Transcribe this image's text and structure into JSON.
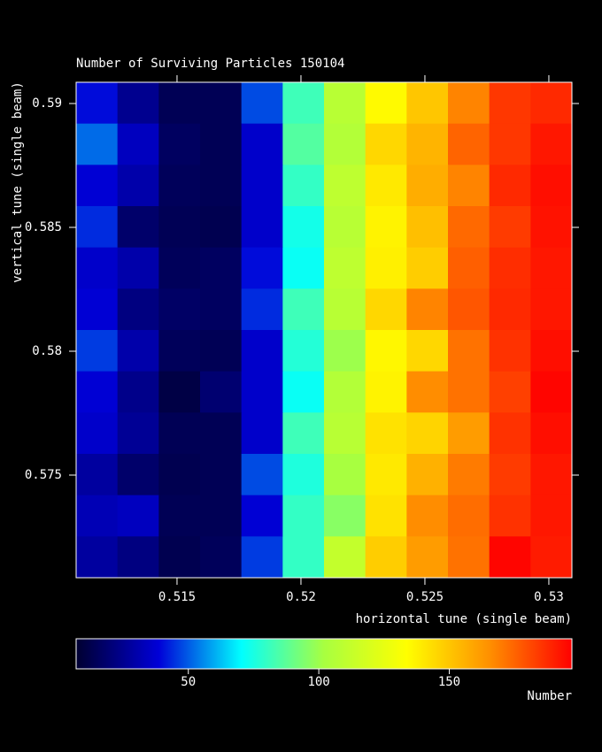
{
  "chart_data": {
    "type": "heatmap",
    "title": "Number of Surviving Particles    150104",
    "x_label": "horizontal tune (single beam)",
    "y_label": "vertical tune (single beam)",
    "colorbar_label": "Number",
    "xlim": [
      0.51093,
      0.53093
    ],
    "xticks": [
      0.515,
      0.52,
      0.525,
      0.53
    ],
    "ylim": [
      0.570857,
      0.590857
    ],
    "yticks": [
      0.575,
      0.58,
      0.585,
      0.59
    ],
    "clim": [
      7,
      197
    ],
    "cticks": [
      50,
      100,
      150
    ],
    "colormap": [
      "#000030",
      "#0000d8",
      "#00ffff",
      "#a8ff40",
      "#ffff00",
      "#ff9000",
      "#ff0000"
    ],
    "z": [
      [
        40,
        25,
        14,
        14,
        48,
        82,
        108,
        135,
        150,
        168,
        185,
        188
      ],
      [
        52,
        34,
        16,
        14,
        36,
        86,
        106,
        145,
        155,
        175,
        185,
        192
      ],
      [
        38,
        30,
        15,
        14,
        36,
        80,
        110,
        140,
        157,
        168,
        188,
        194
      ],
      [
        44,
        18,
        14,
        13,
        36,
        74,
        108,
        137,
        152,
        174,
        184,
        193
      ],
      [
        36,
        30,
        15,
        16,
        40,
        72,
        110,
        138,
        148,
        176,
        187,
        192
      ],
      [
        38,
        22,
        17,
        16,
        44,
        82,
        108,
        145,
        168,
        178,
        188,
        192
      ],
      [
        46,
        30,
        15,
        14,
        36,
        77,
        100,
        136,
        145,
        172,
        186,
        194
      ],
      [
        38,
        24,
        11,
        19,
        36,
        72,
        106,
        137,
        166,
        172,
        183,
        196
      ],
      [
        36,
        26,
        14,
        14,
        36,
        82,
        108,
        142,
        146,
        162,
        186,
        194
      ],
      [
        28,
        18,
        13,
        14,
        48,
        76,
        102,
        140,
        156,
        170,
        184,
        192
      ],
      [
        32,
        34,
        14,
        14,
        38,
        80,
        96,
        142,
        166,
        173,
        186,
        192
      ],
      [
        28,
        22,
        13,
        15,
        46,
        80,
        112,
        148,
        162,
        172,
        196,
        191
      ]
    ]
  }
}
